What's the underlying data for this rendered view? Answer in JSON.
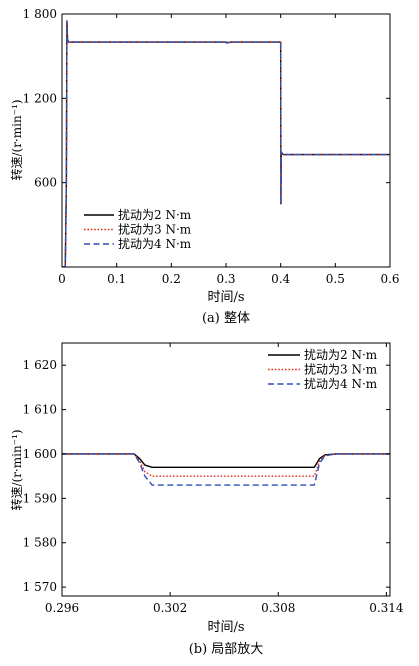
{
  "chart_data": [
    {
      "type": "line",
      "caption": "(a) 整体",
      "xlabel": "时间/s",
      "ylabel": "转速/(r·min⁻¹)",
      "xlim": [
        0,
        0.6
      ],
      "ylim": [
        0,
        1800
      ],
      "x_ticks": [
        0,
        0.1,
        0.2,
        0.3,
        0.4,
        0.5,
        0.6
      ],
      "x_tick_labels": [
        "0",
        "0.1",
        "0.2",
        "0.3",
        "0.4",
        "0.5",
        "0.6"
      ],
      "y_ticks": [
        600,
        1200,
        1800
      ],
      "y_tick_labels": [
        "600",
        "1 200",
        "1 800"
      ],
      "grid": false,
      "legend_position": "bottom-left",
      "series": [
        {
          "name": "扰动为2 N·m",
          "color": "#000000",
          "dash": "solid",
          "x": [
            0,
            0.006,
            0.008,
            0.009,
            0.0095,
            0.01,
            0.012,
            0.02,
            0.1,
            0.2,
            0.3,
            0.3006,
            0.31,
            0.398,
            0.4,
            0.4005,
            0.401,
            0.403,
            0.405,
            0.41,
            0.5,
            0.6
          ],
          "y": [
            0,
            0,
            600,
            1750,
            1700,
            1620,
            1600,
            1600,
            1600,
            1600,
            1600,
            1597,
            1600,
            1600,
            1600,
            450,
            820,
            805,
            800,
            800,
            800,
            800
          ]
        },
        {
          "name": "扰动为3 N·m",
          "color": "#e8281e",
          "dash": "dotted",
          "x": [
            0,
            0.006,
            0.008,
            0.009,
            0.0095,
            0.01,
            0.012,
            0.02,
            0.1,
            0.2,
            0.3,
            0.3006,
            0.31,
            0.398,
            0.4,
            0.4005,
            0.401,
            0.403,
            0.405,
            0.41,
            0.5,
            0.6
          ],
          "y": [
            0,
            0,
            600,
            1750,
            1700,
            1620,
            1600,
            1600,
            1600,
            1600,
            1600,
            1595,
            1600,
            1600,
            1600,
            450,
            820,
            805,
            800,
            800,
            800,
            800
          ]
        },
        {
          "name": "扰动为4 N·m",
          "color": "#2b4fb8",
          "dash": "dashed",
          "x": [
            0,
            0.006,
            0.008,
            0.009,
            0.0095,
            0.01,
            0.012,
            0.02,
            0.1,
            0.2,
            0.3,
            0.3006,
            0.31,
            0.398,
            0.4,
            0.4005,
            0.401,
            0.403,
            0.405,
            0.41,
            0.5,
            0.6
          ],
          "y": [
            0,
            0,
            600,
            1750,
            1700,
            1620,
            1600,
            1600,
            1600,
            1600,
            1600,
            1593,
            1600,
            1600,
            1600,
            450,
            820,
            805,
            800,
            800,
            800,
            800
          ]
        }
      ]
    },
    {
      "type": "line",
      "caption": "(b) 局部放大",
      "xlabel": "时间/s",
      "ylabel": "转速/(r·min⁻¹)",
      "xlim": [
        0.296,
        0.3142
      ],
      "ylim": [
        1568,
        1625
      ],
      "x_ticks": [
        0.296,
        0.302,
        0.308,
        0.314
      ],
      "x_tick_labels": [
        "0.296",
        "0.302",
        "0.308",
        "0.314"
      ],
      "y_ticks": [
        1570,
        1580,
        1590,
        1600,
        1610,
        1620
      ],
      "y_tick_labels": [
        "1 570",
        "1 580",
        "1 590",
        "1 600",
        "1 610",
        "1 620"
      ],
      "grid": false,
      "legend_position": "top-right",
      "series": [
        {
          "name": "扰动为2 N·m",
          "color": "#000000",
          "dash": "solid",
          "x": [
            0.296,
            0.3,
            0.3003,
            0.3006,
            0.301,
            0.305,
            0.309,
            0.31,
            0.3103,
            0.3106,
            0.3112,
            0.3142
          ],
          "y": [
            1600,
            1600,
            1599,
            1597.5,
            1597,
            1597,
            1597,
            1597,
            1599,
            1599.8,
            1600,
            1600
          ]
        },
        {
          "name": "扰动为3 N·m",
          "color": "#e8281e",
          "dash": "dotted",
          "x": [
            0.296,
            0.3,
            0.3003,
            0.3006,
            0.301,
            0.305,
            0.309,
            0.31,
            0.3103,
            0.3106,
            0.3112,
            0.3142
          ],
          "y": [
            1600,
            1600,
            1598.5,
            1596,
            1595,
            1595,
            1595,
            1595,
            1598.5,
            1599.7,
            1600,
            1600
          ]
        },
        {
          "name": "扰动为4 N·m",
          "color": "#2b4fb8",
          "dash": "dashed",
          "x": [
            0.296,
            0.3,
            0.3003,
            0.3006,
            0.301,
            0.305,
            0.309,
            0.31,
            0.3103,
            0.3106,
            0.3112,
            0.3142
          ],
          "y": [
            1600,
            1600,
            1598,
            1595,
            1593,
            1593,
            1593,
            1593,
            1598,
            1599.6,
            1600,
            1600
          ]
        }
      ]
    }
  ]
}
